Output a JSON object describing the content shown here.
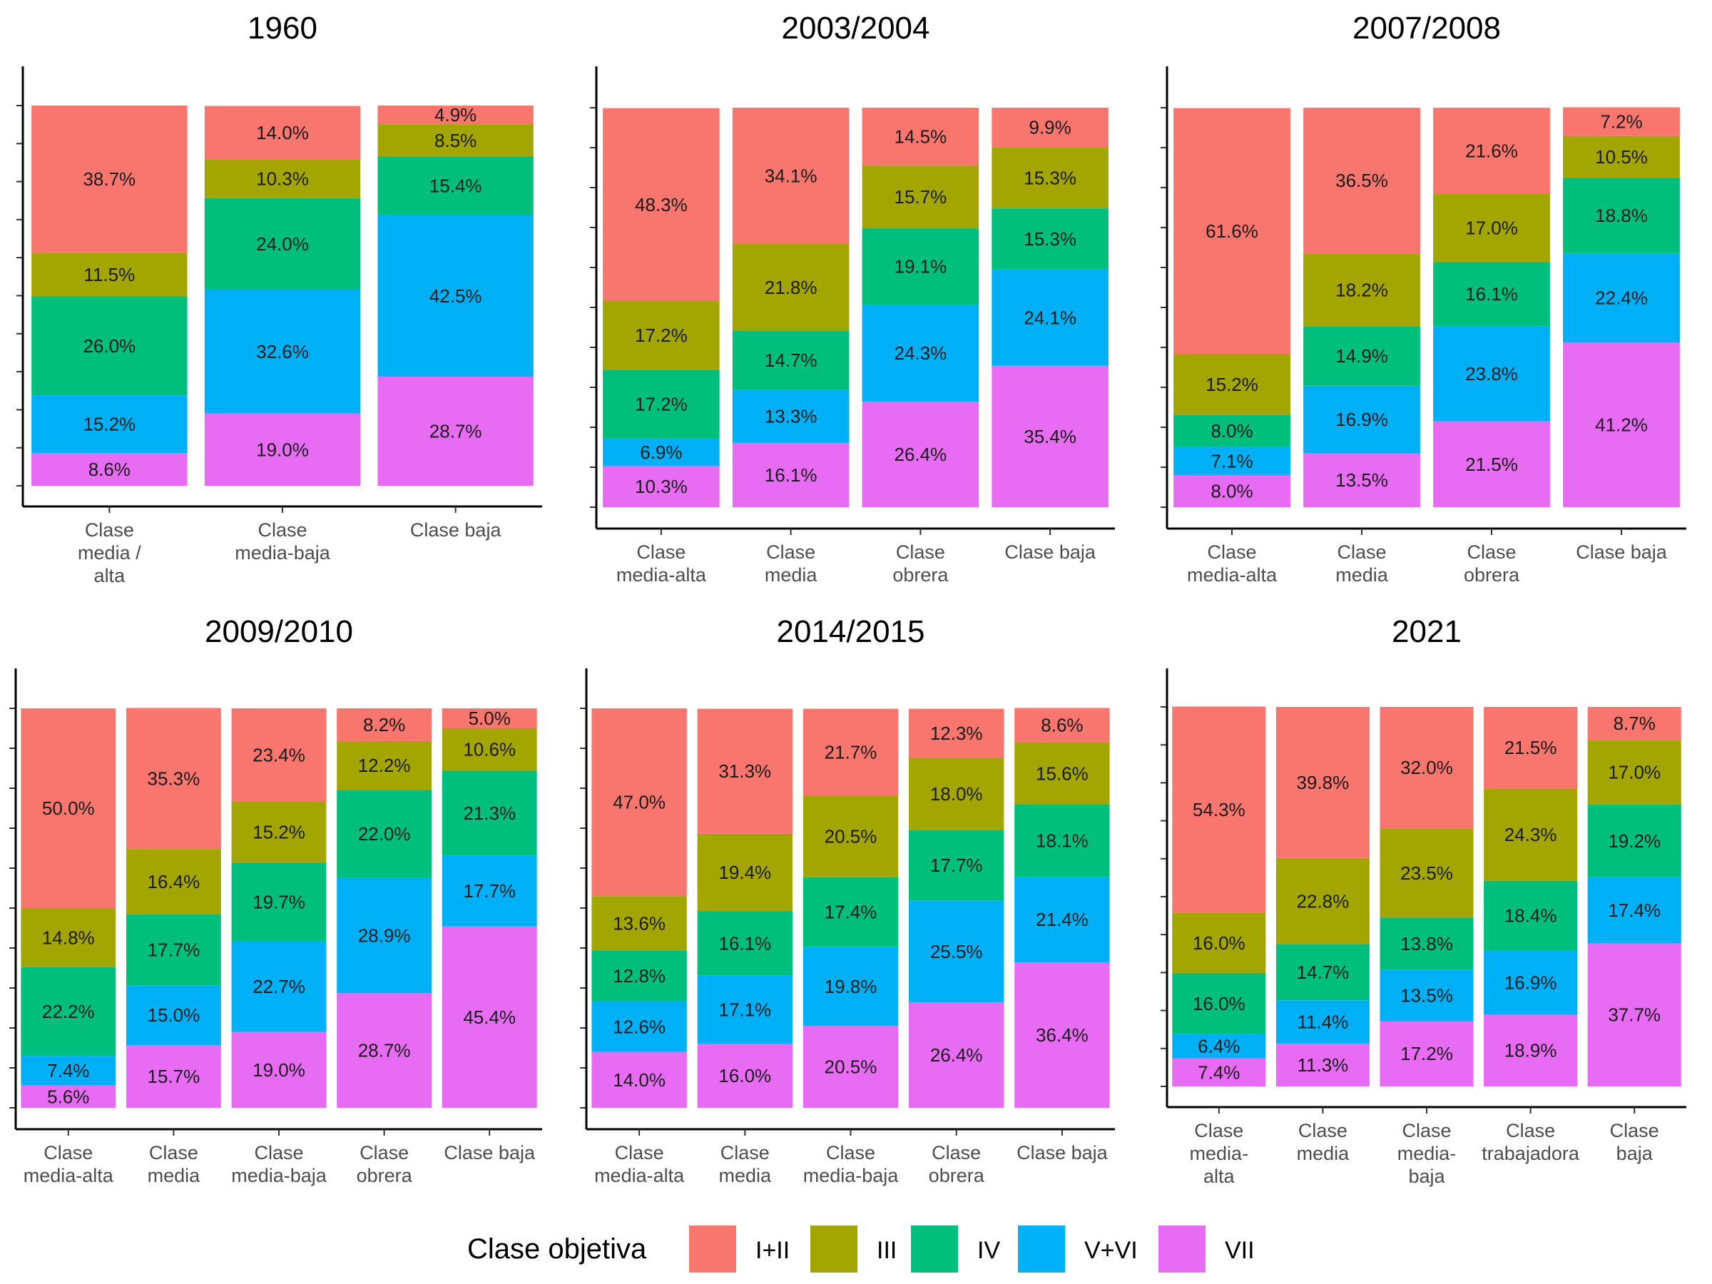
{
  "legend": {
    "title": "Clase objetiva",
    "items": [
      {
        "label": "I+II",
        "color": "#F8766D"
      },
      {
        "label": "III",
        "color": "#A3A500"
      },
      {
        "label": "IV",
        "color": "#00BF7D"
      },
      {
        "label": "V+VI",
        "color": "#00B0F6"
      },
      {
        "label": "VII",
        "color": "#E76BF3"
      }
    ]
  },
  "chart_data": [
    {
      "type": "bar",
      "stacked": true,
      "title": "1960",
      "categories": [
        [
          "Clase",
          "media /",
          "alta"
        ],
        [
          "Clase",
          "media-baja"
        ],
        [
          "Clase baja"
        ]
      ],
      "series": [
        {
          "name": "I+II",
          "values": [
            38.7,
            14.0,
            4.9
          ],
          "labels": [
            "38.7%",
            "14.0%",
            "4.9%"
          ]
        },
        {
          "name": "III",
          "values": [
            11.5,
            10.3,
            8.5
          ],
          "labels": [
            "11.5%",
            "10.3%",
            "8.5%"
          ]
        },
        {
          "name": "IV",
          "values": [
            26.0,
            24.0,
            15.4
          ],
          "labels": [
            "26.0%",
            "24.0%",
            "15.4%"
          ]
        },
        {
          "name": "V+VI",
          "values": [
            15.2,
            32.6,
            42.5
          ],
          "labels": [
            "15.2%",
            "32.6%",
            "42.5%"
          ]
        },
        {
          "name": "VII",
          "values": [
            8.6,
            19.0,
            28.7
          ],
          "labels": [
            "8.6%",
            "19.0%",
            "28.7%"
          ]
        }
      ]
    },
    {
      "type": "bar",
      "stacked": true,
      "title": "2003/2004",
      "categories": [
        [
          "Clase",
          "media-alta"
        ],
        [
          "Clase",
          "media"
        ],
        [
          "Clase",
          "obrera"
        ],
        [
          "Clase baja"
        ]
      ],
      "series": [
        {
          "name": "I+II",
          "values": [
            48.3,
            34.1,
            14.5,
            9.9
          ],
          "labels": [
            "48.3%",
            "34.1%",
            "14.5%",
            "9.9%"
          ]
        },
        {
          "name": "III",
          "values": [
            17.2,
            21.8,
            15.7,
            15.3
          ],
          "labels": [
            "17.2%",
            "21.8%",
            "15.7%",
            "15.3%"
          ]
        },
        {
          "name": "IV",
          "values": [
            17.2,
            14.7,
            19.1,
            15.3
          ],
          "labels": [
            "17.2%",
            "14.7%",
            "19.1%",
            "15.3%"
          ]
        },
        {
          "name": "V+VI",
          "values": [
            6.9,
            13.3,
            24.3,
            24.1
          ],
          "labels": [
            "6.9%",
            "13.3%",
            "24.3%",
            "24.1%"
          ]
        },
        {
          "name": "VII",
          "values": [
            10.3,
            16.1,
            26.4,
            35.4
          ],
          "labels": [
            "10.3%",
            "16.1%",
            "26.4%",
            "35.4%"
          ]
        }
      ]
    },
    {
      "type": "bar",
      "stacked": true,
      "title": "2007/2008",
      "categories": [
        [
          "Clase",
          "media-alta"
        ],
        [
          "Clase",
          "media"
        ],
        [
          "Clase",
          "obrera"
        ],
        [
          "Clase baja"
        ]
      ],
      "series": [
        {
          "name": "I+II",
          "values": [
            61.6,
            36.5,
            21.6,
            7.2
          ],
          "labels": [
            "61.6%",
            "36.5%",
            "21.6%",
            "7.2%"
          ]
        },
        {
          "name": "III",
          "values": [
            15.2,
            18.2,
            17.0,
            10.5
          ],
          "labels": [
            "15.2%",
            "18.2%",
            "17.0%",
            "10.5%"
          ]
        },
        {
          "name": "IV",
          "values": [
            8.0,
            14.9,
            16.1,
            18.8
          ],
          "labels": [
            "8.0%",
            "14.9%",
            "16.1%",
            "18.8%"
          ]
        },
        {
          "name": "V+VI",
          "values": [
            7.1,
            16.9,
            23.8,
            22.4
          ],
          "labels": [
            "7.1%",
            "16.9%",
            "23.8%",
            "22.4%"
          ]
        },
        {
          "name": "VII",
          "values": [
            8.0,
            13.5,
            21.5,
            41.2
          ],
          "labels": [
            "8.0%",
            "13.5%",
            "21.5%",
            "41.2%"
          ]
        }
      ]
    },
    {
      "type": "bar",
      "stacked": true,
      "title": "2009/2010",
      "categories": [
        [
          "Clase",
          "media-alta"
        ],
        [
          "Clase",
          "media"
        ],
        [
          "Clase",
          "media-baja"
        ],
        [
          "Clase",
          "obrera"
        ],
        [
          "Clase baja"
        ]
      ],
      "series": [
        {
          "name": "I+II",
          "values": [
            50.0,
            35.3,
            23.4,
            8.2,
            5.0
          ],
          "labels": [
            "50.0%",
            "35.3%",
            "23.4%",
            "8.2%",
            "5.0%"
          ]
        },
        {
          "name": "III",
          "values": [
            14.8,
            16.4,
            15.2,
            12.2,
            10.6
          ],
          "labels": [
            "14.8%",
            "16.4%",
            "15.2%",
            "12.2%",
            "10.6%"
          ]
        },
        {
          "name": "IV",
          "values": [
            22.2,
            17.7,
            19.7,
            22.0,
            21.3
          ],
          "labels": [
            "22.2%",
            "17.7%",
            "19.7%",
            "22.0%",
            "21.3%"
          ]
        },
        {
          "name": "V+VI",
          "values": [
            7.4,
            15.0,
            22.7,
            28.9,
            17.7
          ],
          "labels": [
            "7.4%",
            "15.0%",
            "22.7%",
            "28.9%",
            "17.7%"
          ]
        },
        {
          "name": "VII",
          "values": [
            5.6,
            15.7,
            19.0,
            28.7,
            45.4
          ],
          "labels": [
            "5.6%",
            "15.7%",
            "19.0%",
            "28.7%",
            "45.4%"
          ]
        }
      ]
    },
    {
      "type": "bar",
      "stacked": true,
      "title": "2014/2015",
      "categories": [
        [
          "Clase",
          "media-alta"
        ],
        [
          "Clase",
          "media"
        ],
        [
          "Clase",
          "media-baja"
        ],
        [
          "Clase",
          "obrera"
        ],
        [
          "Clase baja"
        ]
      ],
      "series": [
        {
          "name": "I+II",
          "values": [
            47.0,
            31.3,
            21.7,
            12.3,
            8.6
          ],
          "labels": [
            "47.0%",
            "31.3%",
            "21.7%",
            "12.3%",
            "8.6%"
          ]
        },
        {
          "name": "III",
          "values": [
            13.6,
            19.4,
            20.5,
            18.0,
            15.6
          ],
          "labels": [
            "13.6%",
            "19.4%",
            "20.5%",
            "18.0%",
            "15.6%"
          ]
        },
        {
          "name": "IV",
          "values": [
            12.8,
            16.1,
            17.4,
            17.7,
            18.1
          ],
          "labels": [
            "12.8%",
            "16.1%",
            "17.4%",
            "17.7%",
            "18.1%"
          ]
        },
        {
          "name": "V+VI",
          "values": [
            12.6,
            17.1,
            19.8,
            25.5,
            21.4
          ],
          "labels": [
            "12.6%",
            "17.1%",
            "19.8%",
            "25.5%",
            "21.4%"
          ]
        },
        {
          "name": "VII",
          "values": [
            14.0,
            16.0,
            20.5,
            26.4,
            36.4
          ],
          "labels": [
            "14.0%",
            "16.0%",
            "20.5%",
            "26.4%",
            "36.4%"
          ]
        }
      ]
    },
    {
      "type": "bar",
      "stacked": true,
      "title": "2021",
      "categories": [
        [
          "Clase",
          "media-",
          "alta"
        ],
        [
          "Clase",
          "media"
        ],
        [
          "Clase",
          "media-",
          "baja"
        ],
        [
          "Clase",
          "trabajadora"
        ],
        [
          "Clase",
          "baja"
        ]
      ],
      "series": [
        {
          "name": "I+II",
          "values": [
            54.3,
            39.8,
            32.0,
            21.5,
            8.7
          ],
          "labels": [
            "54.3%",
            "39.8%",
            "32.0%",
            "21.5%",
            "8.7%"
          ]
        },
        {
          "name": "III",
          "values": [
            16.0,
            22.8,
            23.5,
            24.3,
            17.0
          ],
          "labels": [
            "16.0%",
            "22.8%",
            "23.5%",
            "24.3%",
            "17.0%"
          ]
        },
        {
          "name": "IV",
          "values": [
            16.0,
            14.7,
            13.8,
            18.4,
            19.2
          ],
          "labels": [
            "16.0%",
            "14.7%",
            "13.8%",
            "18.4%",
            "19.2%"
          ]
        },
        {
          "name": "V+VI",
          "values": [
            6.4,
            11.4,
            13.5,
            16.9,
            17.4
          ],
          "labels": [
            "6.4%",
            "11.4%",
            "13.5%",
            "16.9%",
            "17.4%"
          ]
        },
        {
          "name": "VII",
          "values": [
            7.4,
            11.3,
            17.2,
            18.9,
            37.7
          ],
          "labels": [
            "7.4%",
            "11.3%",
            "17.2%",
            "18.9%",
            "37.7%"
          ]
        }
      ]
    }
  ]
}
